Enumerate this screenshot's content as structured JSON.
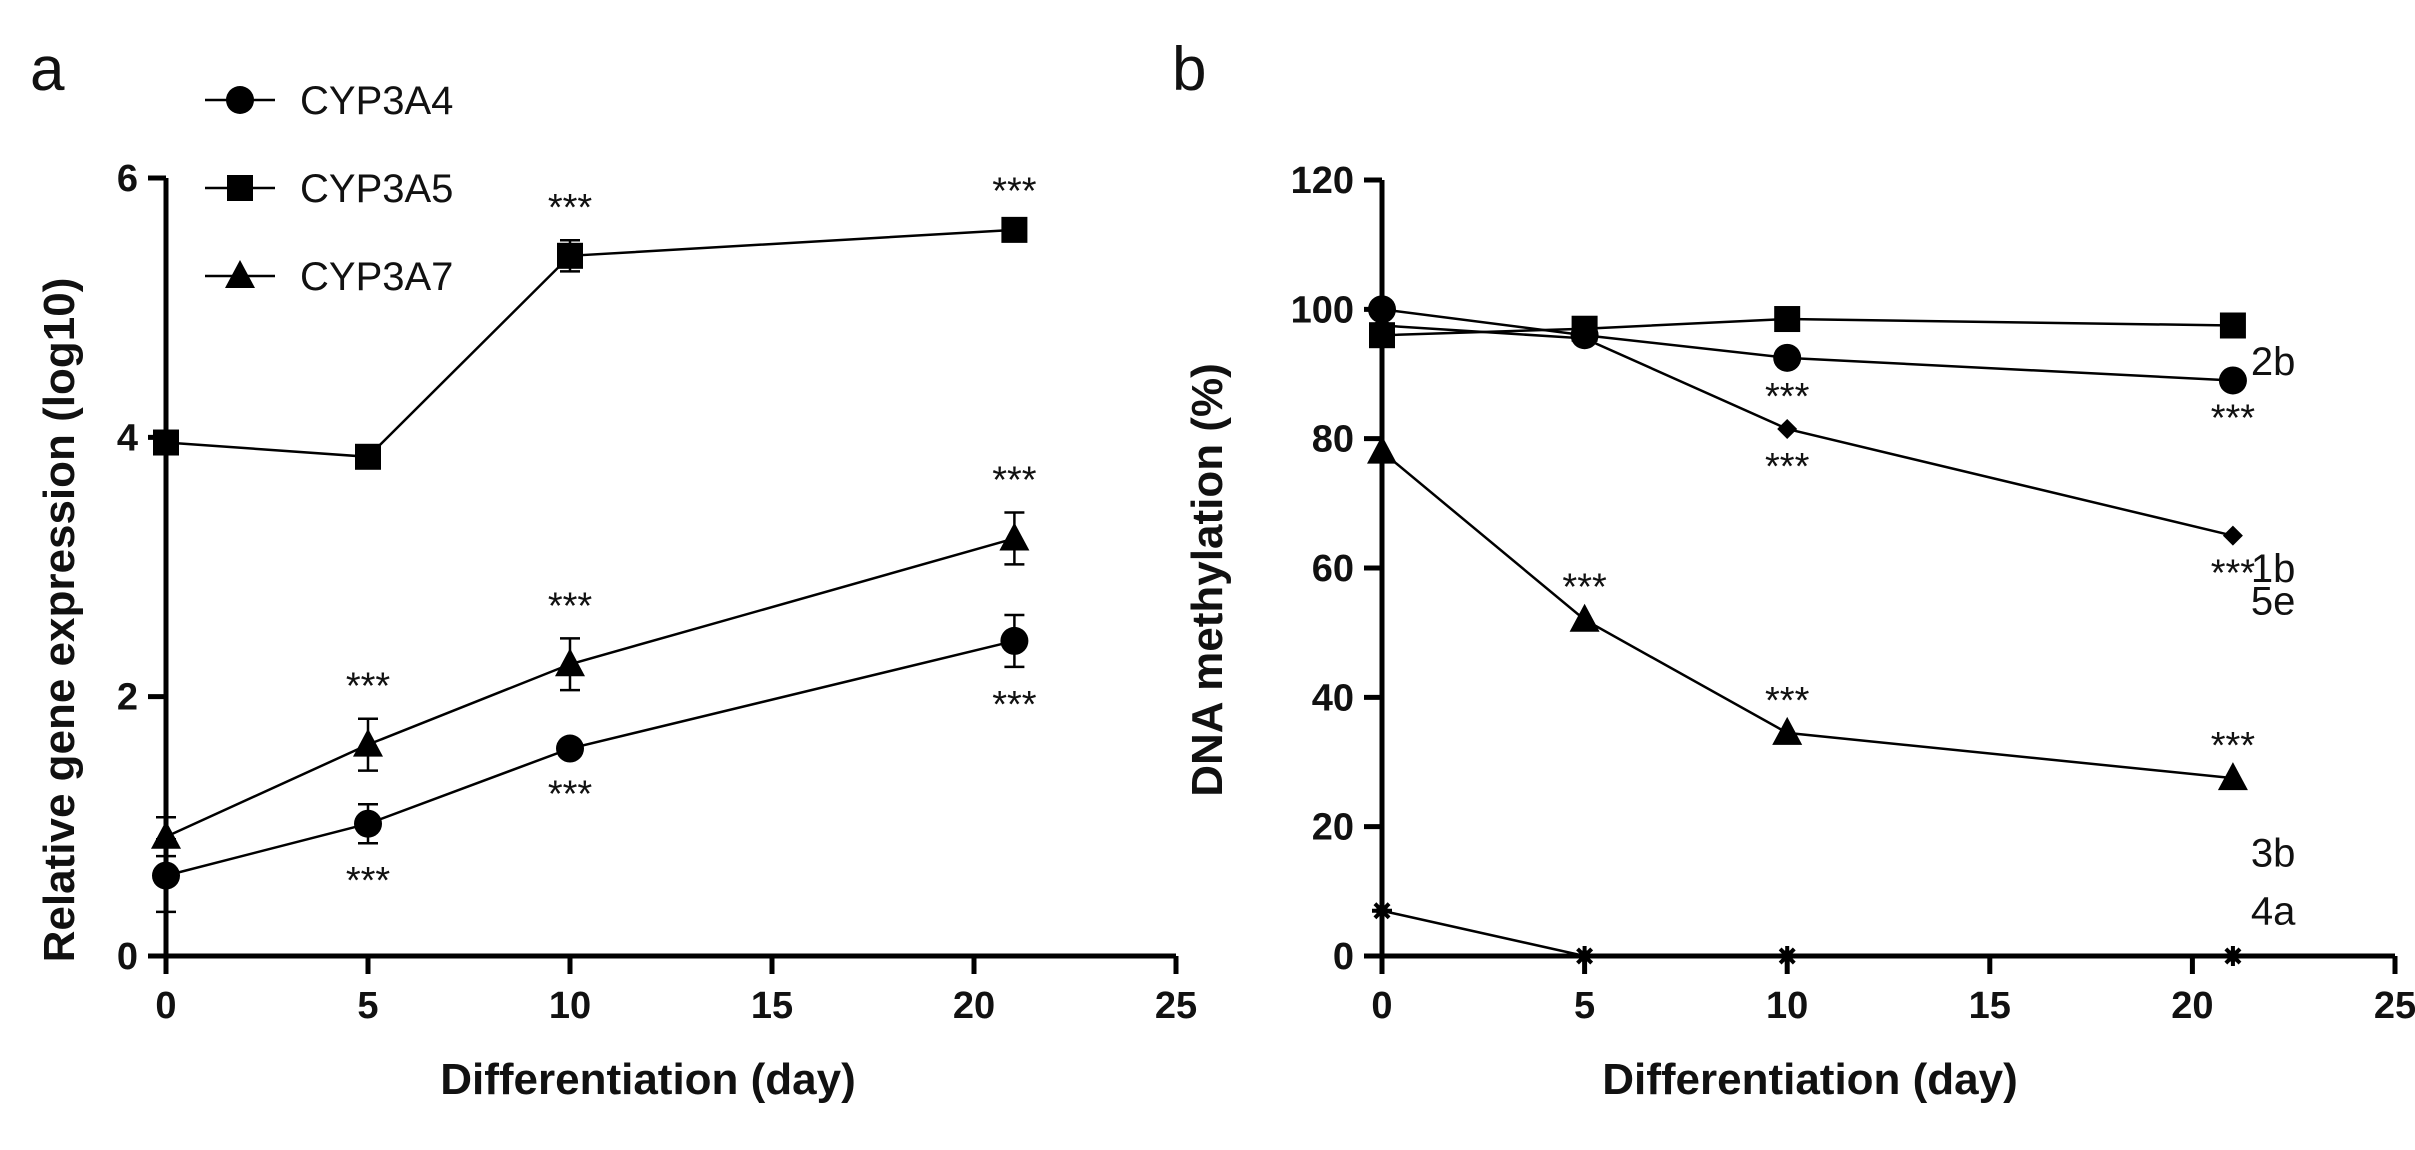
{
  "chart_data": [
    {
      "panel": "a",
      "type": "line",
      "xlabel": "Differentiation (day)",
      "ylabel": "Relative gene expression (log10)",
      "xlim": [
        0,
        25
      ],
      "ylim": [
        0,
        6
      ],
      "xticks": [
        0,
        5,
        10,
        15,
        20,
        25
      ],
      "yticks": [
        0,
        2,
        4,
        6
      ],
      "x": [
        0,
        5,
        10,
        21
      ],
      "legend": [
        "CYP3A4",
        "CYP3A5",
        "CYP3A7"
      ],
      "series": [
        {
          "name": "CYP3A4",
          "marker": "circle",
          "values": [
            0.62,
            1.02,
            1.6,
            2.43
          ],
          "errors": [
            0.28,
            0.15,
            0.06,
            0.2
          ],
          "annotations": [
            {
              "x": 5,
              "text": "***",
              "pos": "below"
            },
            {
              "x": 10,
              "text": "***",
              "pos": "below"
            },
            {
              "x": 21,
              "text": "***",
              "pos": "below"
            }
          ]
        },
        {
          "name": "CYP3A5",
          "marker": "square",
          "values": [
            3.96,
            3.85,
            5.4,
            5.6
          ],
          "errors": [
            0.05,
            0.05,
            0.12,
            0.05
          ],
          "annotations": [
            {
              "x": 10,
              "text": "***",
              "pos": "above"
            },
            {
              "x": 21,
              "text": "***",
              "pos": "above"
            }
          ]
        },
        {
          "name": "CYP3A7",
          "marker": "triangle",
          "values": [
            0.92,
            1.63,
            2.25,
            3.22
          ],
          "errors": [
            0.15,
            0.2,
            0.2,
            0.2
          ],
          "annotations": [
            {
              "x": 5,
              "text": "***",
              "pos": "above"
            },
            {
              "x": 10,
              "text": "***",
              "pos": "above"
            },
            {
              "x": 21,
              "text": "***",
              "pos": "above"
            }
          ]
        }
      ]
    },
    {
      "panel": "b",
      "type": "line",
      "xlabel": "Differentiation (day)",
      "ylabel": "DNA methylation (%)",
      "xlim": [
        0,
        25
      ],
      "ylim": [
        0,
        120
      ],
      "xticks": [
        0,
        5,
        10,
        15,
        20,
        25
      ],
      "yticks": [
        0,
        20,
        40,
        60,
        80,
        100,
        120
      ],
      "x": [
        0,
        5,
        10,
        21
      ],
      "series": [
        {
          "name": "2b",
          "marker": "square",
          "values": [
            96,
            97,
            98.5,
            97.5
          ],
          "annotations": []
        },
        {
          "name": "1b",
          "marker": "circle",
          "values": [
            100,
            96,
            92.5,
            89
          ],
          "annotations": [
            {
              "x": 21,
              "text": "***",
              "pos": "below"
            }
          ]
        },
        {
          "name": "5e",
          "marker": "diamond",
          "values": [
            97.5,
            95.5,
            81.5,
            65
          ],
          "annotations": [
            {
              "x": 10,
              "text": "***",
              "pos": "above"
            },
            {
              "x": 10,
              "text": "***",
              "pos": "below"
            },
            {
              "x": 21,
              "text": "***",
              "pos": "below"
            }
          ]
        },
        {
          "name": "3b",
          "marker": "triangle",
          "values": [
            78,
            52,
            34.5,
            27.5
          ],
          "annotations": [
            {
              "x": 5,
              "text": "***",
              "pos": "above"
            },
            {
              "x": 10,
              "text": "***",
              "pos": "above"
            },
            {
              "x": 21,
              "text": "***",
              "pos": "above"
            }
          ]
        },
        {
          "name": "4a",
          "marker": "star",
          "values": [
            7,
            0,
            0,
            0
          ],
          "annotations": []
        }
      ]
    }
  ]
}
